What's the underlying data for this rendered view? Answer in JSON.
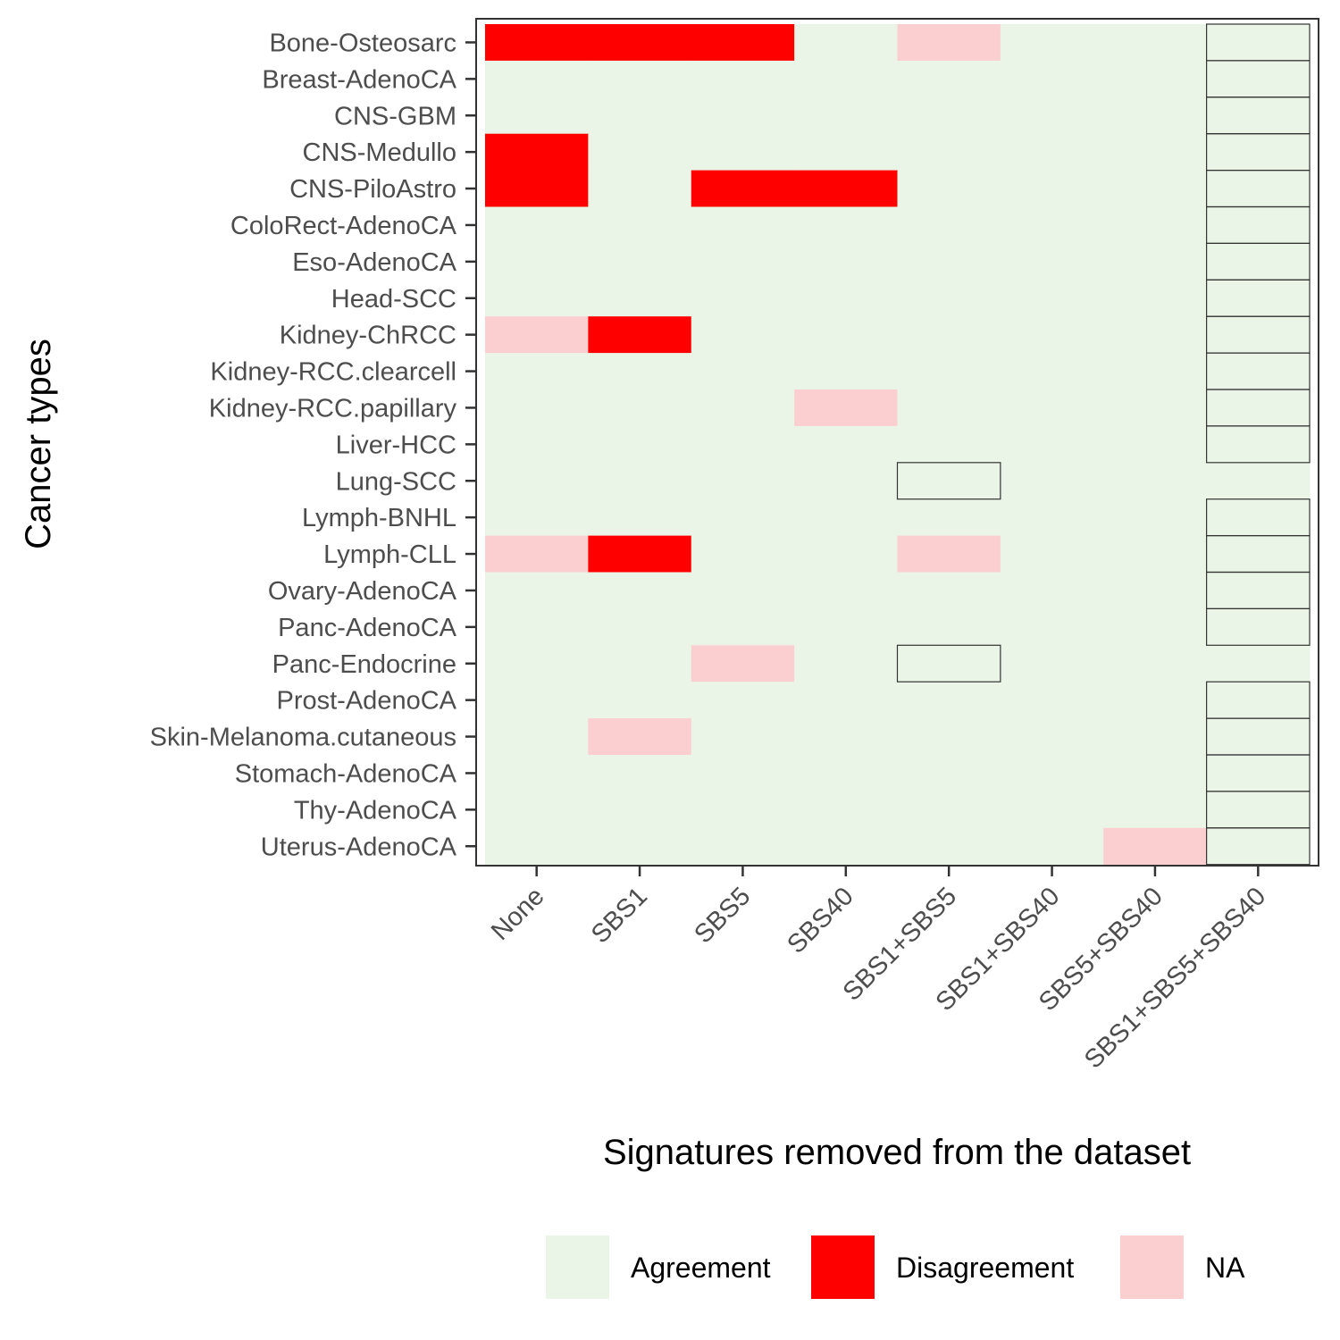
{
  "chart_data": {
    "type": "heatmap",
    "xlabel": "Signatures removed from the dataset",
    "ylabel": "Cancer types",
    "x_categories": [
      "None",
      "SBS1",
      "SBS5",
      "SBS40",
      "SBS1+SBS5",
      "SBS1+SBS40",
      "SBS5+SBS40",
      "SBS1+SBS5+SBS40"
    ],
    "y_categories": [
      "Bone-Osteosarc",
      "Breast-AdenoCA",
      "CNS-GBM",
      "CNS-Medullo",
      "CNS-PiloAstro",
      "ColoRect-AdenoCA",
      "Eso-AdenoCA",
      "Head-SCC",
      "Kidney-ChRCC",
      "Kidney-RCC.clearcell",
      "Kidney-RCC.papillary",
      "Liver-HCC",
      "Lung-SCC",
      "Lymph-BNHL",
      "Lymph-CLL",
      "Ovary-AdenoCA",
      "Panc-AdenoCA",
      "Panc-Endocrine",
      "Prost-AdenoCA",
      "Skin-Melanoma.cutaneous",
      "Stomach-AdenoCA",
      "Thy-AdenoCA",
      "Uterus-AdenoCA"
    ],
    "legend": {
      "position": "bottom",
      "entries": [
        {
          "label": "Agreement",
          "color": "#eaf5e7"
        },
        {
          "label": "Disagreement",
          "color": "#ff0000"
        },
        {
          "label": "NA",
          "color": "#fbcfcf"
        }
      ]
    },
    "default_status": "Agreement",
    "cells": [
      {
        "row": "Bone-Osteosarc",
        "col": "None",
        "status": "Disagreement"
      },
      {
        "row": "Bone-Osteosarc",
        "col": "SBS1",
        "status": "Disagreement"
      },
      {
        "row": "Bone-Osteosarc",
        "col": "SBS5",
        "status": "Disagreement"
      },
      {
        "row": "Bone-Osteosarc",
        "col": "SBS1+SBS5",
        "status": "NA"
      },
      {
        "row": "CNS-Medullo",
        "col": "None",
        "status": "Disagreement"
      },
      {
        "row": "CNS-PiloAstro",
        "col": "None",
        "status": "Disagreement"
      },
      {
        "row": "CNS-PiloAstro",
        "col": "SBS5",
        "status": "Disagreement"
      },
      {
        "row": "CNS-PiloAstro",
        "col": "SBS40",
        "status": "Disagreement"
      },
      {
        "row": "Kidney-ChRCC",
        "col": "None",
        "status": "NA"
      },
      {
        "row": "Kidney-ChRCC",
        "col": "SBS1",
        "status": "Disagreement"
      },
      {
        "row": "Kidney-RCC.papillary",
        "col": "SBS40",
        "status": "NA"
      },
      {
        "row": "Lymph-CLL",
        "col": "None",
        "status": "NA"
      },
      {
        "row": "Lymph-CLL",
        "col": "SBS1",
        "status": "Disagreement"
      },
      {
        "row": "Lymph-CLL",
        "col": "SBS1+SBS5",
        "status": "NA"
      },
      {
        "row": "Panc-Endocrine",
        "col": "SBS5",
        "status": "NA"
      },
      {
        "row": "Skin-Melanoma.cutaneous",
        "col": "SBS1",
        "status": "NA"
      },
      {
        "row": "Uterus-AdenoCA",
        "col": "SBS5+SBS40",
        "status": "NA"
      }
    ],
    "outlined_cells": [
      {
        "row": "Bone-Osteosarc",
        "col": "SBS1+SBS5+SBS40"
      },
      {
        "row": "Breast-AdenoCA",
        "col": "SBS1+SBS5+SBS40"
      },
      {
        "row": "CNS-GBM",
        "col": "SBS1+SBS5+SBS40"
      },
      {
        "row": "CNS-Medullo",
        "col": "SBS1+SBS5+SBS40"
      },
      {
        "row": "CNS-PiloAstro",
        "col": "SBS1+SBS5+SBS40"
      },
      {
        "row": "ColoRect-AdenoCA",
        "col": "SBS1+SBS5+SBS40"
      },
      {
        "row": "Eso-AdenoCA",
        "col": "SBS1+SBS5+SBS40"
      },
      {
        "row": "Head-SCC",
        "col": "SBS1+SBS5+SBS40"
      },
      {
        "row": "Kidney-ChRCC",
        "col": "SBS1+SBS5+SBS40"
      },
      {
        "row": "Kidney-RCC.clearcell",
        "col": "SBS1+SBS5+SBS40"
      },
      {
        "row": "Kidney-RCC.papillary",
        "col": "SBS1+SBS5+SBS40"
      },
      {
        "row": "Liver-HCC",
        "col": "SBS1+SBS5+SBS40"
      },
      {
        "row": "Lung-SCC",
        "col": "SBS1+SBS5"
      },
      {
        "row": "Lymph-BNHL",
        "col": "SBS1+SBS5+SBS40"
      },
      {
        "row": "Lymph-CLL",
        "col": "SBS1+SBS5+SBS40"
      },
      {
        "row": "Ovary-AdenoCA",
        "col": "SBS1+SBS5+SBS40"
      },
      {
        "row": "Panc-AdenoCA",
        "col": "SBS1+SBS5+SBS40"
      },
      {
        "row": "Panc-Endocrine",
        "col": "SBS1+SBS5"
      },
      {
        "row": "Prost-AdenoCA",
        "col": "SBS1+SBS5+SBS40"
      },
      {
        "row": "Skin-Melanoma.cutaneous",
        "col": "SBS1+SBS5+SBS40"
      },
      {
        "row": "Stomach-AdenoCA",
        "col": "SBS1+SBS5+SBS40"
      },
      {
        "row": "Thy-AdenoCA",
        "col": "SBS1+SBS5+SBS40"
      },
      {
        "row": "Uterus-AdenoCA",
        "col": "SBS1+SBS5+SBS40"
      }
    ]
  }
}
